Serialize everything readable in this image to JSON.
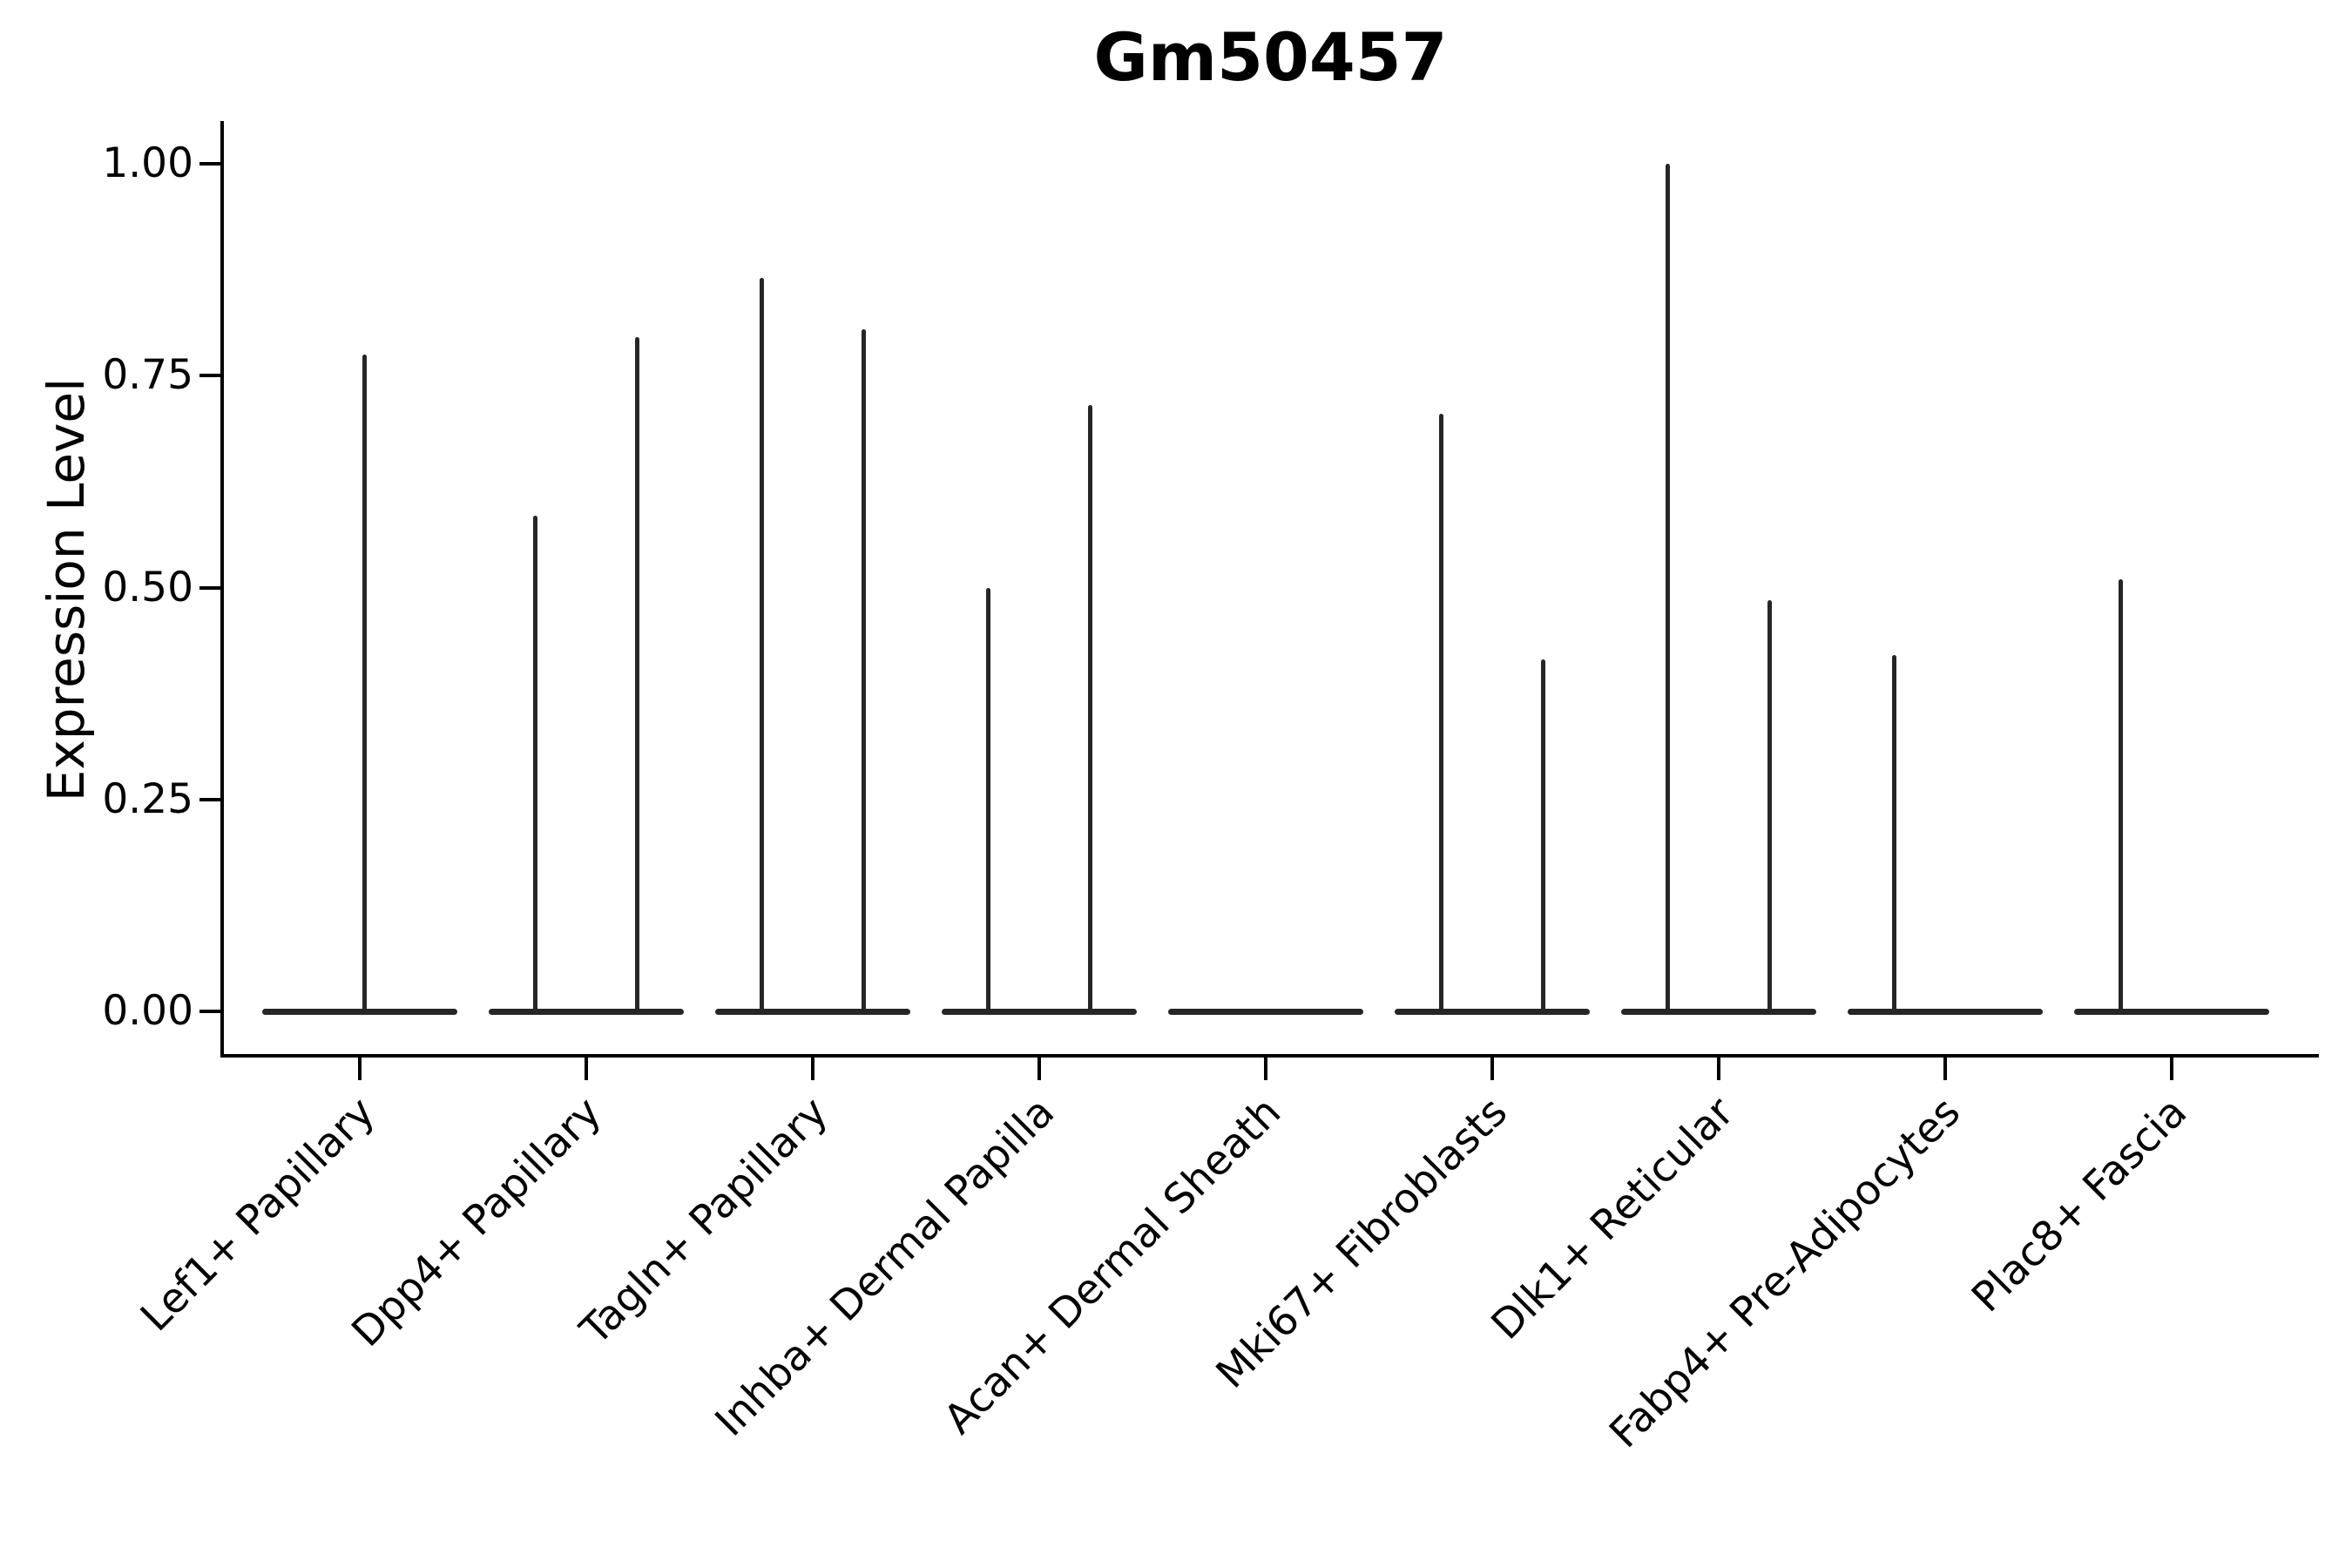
{
  "title": "Gm50457",
  "axes": {
    "y_label": "Expression Level",
    "y_ticks": [
      {
        "label": "1.00",
        "value": 1.0
      },
      {
        "label": "0.75",
        "value": 0.75
      },
      {
        "label": "0.50",
        "value": 0.5
      },
      {
        "label": "0.25",
        "value": 0.25
      },
      {
        "label": "0.00",
        "value": 0.0
      }
    ],
    "x_tick_labels": [
      "Lef1+ Papillary",
      "Dpp4+ Papillary",
      "Tagln+ Papillary",
      "Inhba+ Dermal Papilla",
      "Acan+ Dermal Sheath",
      "Mki67+ Fibroblasts",
      "Dlk1+ Reticular",
      "Fabp4+ Pre-Adipocytes",
      "Plac8+ Fascia"
    ]
  },
  "chart_data": {
    "type": "violin",
    "title": "Gm50457",
    "xlabel": "",
    "ylabel": "Expression Level",
    "ylim": [
      -0.05,
      1.05
    ],
    "y_tick_values": [
      0.0,
      0.25,
      0.5,
      0.75,
      1.0
    ],
    "grid": false,
    "legend": false,
    "description": "Collapsed violins: each category has a flat density bar at expression 0 plus thin vertical spikes at the expression values of the few expressing cells.",
    "categories": [
      "Lef1+ Papillary",
      "Dpp4+ Papillary",
      "Tagln+ Papillary",
      "Inhba+ Dermal Papilla",
      "Acan+ Dermal Sheath",
      "Mki67+ Fibroblasts",
      "Dlk1+ Reticular",
      "Fabp4+ Pre-Adipocytes",
      "Plac8+ Fascia"
    ],
    "series": [
      {
        "category": "Lef1+ Papillary",
        "zero_mass": true,
        "spikes": [
          {
            "x_offset": 0.02,
            "value": 0.775
          }
        ]
      },
      {
        "category": "Dpp4+ Papillary",
        "zero_mass": true,
        "spikes": [
          {
            "x_offset": -0.225,
            "value": 0.585
          },
          {
            "x_offset": 0.225,
            "value": 0.795
          }
        ]
      },
      {
        "category": "Tagln+ Papillary",
        "zero_mass": true,
        "spikes": [
          {
            "x_offset": -0.225,
            "value": 0.865
          },
          {
            "x_offset": 0.225,
            "value": 0.805
          }
        ]
      },
      {
        "category": "Inhba+ Dermal Papilla",
        "zero_mass": true,
        "spikes": [
          {
            "x_offset": -0.225,
            "value": 0.5
          },
          {
            "x_offset": 0.225,
            "value": 0.715
          }
        ]
      },
      {
        "category": "Acan+ Dermal Sheath",
        "zero_mass": true,
        "spikes": []
      },
      {
        "category": "Mki67+ Fibroblasts",
        "zero_mass": true,
        "spikes": [
          {
            "x_offset": -0.225,
            "value": 0.705
          },
          {
            "x_offset": 0.225,
            "value": 0.415
          }
        ]
      },
      {
        "category": "Dlk1+ Reticular",
        "zero_mass": true,
        "spikes": [
          {
            "x_offset": -0.225,
            "value": 1.0
          },
          {
            "x_offset": 0.225,
            "value": 0.485
          }
        ]
      },
      {
        "category": "Fabp4+ Pre-Adipocytes",
        "zero_mass": true,
        "spikes": [
          {
            "x_offset": -0.225,
            "value": 0.42
          }
        ]
      },
      {
        "category": "Plac8+ Fascia",
        "zero_mass": true,
        "spikes": [
          {
            "x_offset": -0.225,
            "value": 0.51
          }
        ]
      }
    ]
  },
  "colors": {
    "background": "#ffffff",
    "ink": "#000000",
    "violin_stroke": "#262626"
  }
}
